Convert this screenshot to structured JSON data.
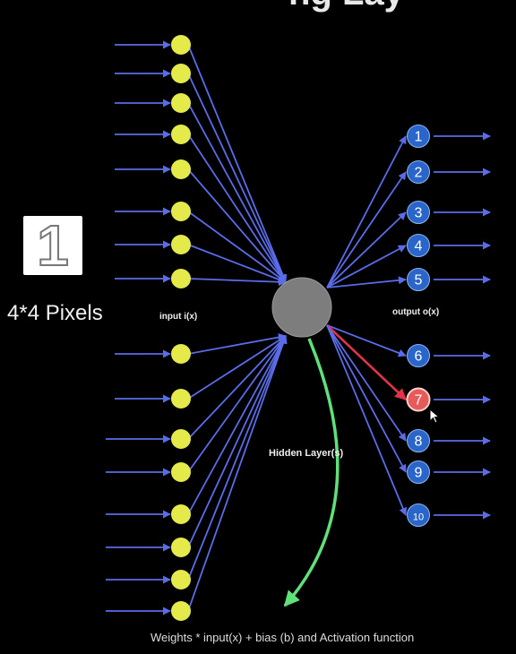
{
  "title_fragment": "ng Lay",
  "digit_image": {
    "digit": "1",
    "icon": "digit-one-image"
  },
  "pixels_label": "4*4 Pixels",
  "input_label": "input i(x)",
  "output_label": "output o(x)",
  "hidden_label": "Hidden Layer(s)",
  "formula": "Weights * input(x) + bias (b) and Activation function",
  "input_node_count": 16,
  "output_nodes": [
    "1",
    "2",
    "3",
    "4",
    "5",
    "6",
    "7",
    "8",
    "9",
    "10"
  ],
  "highlighted_output": "7",
  "colors": {
    "background": "#000000",
    "input_node": "#e3ea4a",
    "hidden_node": "#7d7d7d",
    "output_node": "#2a66c9",
    "highlight_node": "#e85a5a",
    "edge": "#5a6ce8",
    "highlight_edge": "#e0344a",
    "hidden_arrow": "#5fe07a"
  }
}
